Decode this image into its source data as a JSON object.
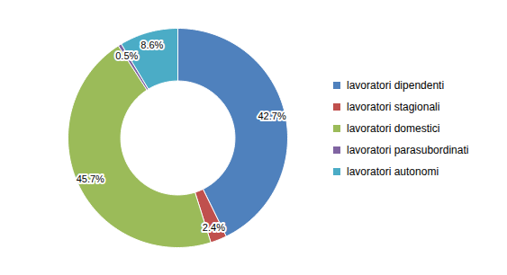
{
  "chart_data": {
    "type": "donut",
    "categories": [
      "lavoratori dipendenti",
      "lavoratori stagionali",
      "lavoratori domestici",
      "lavoratori parasubordinati",
      "lavoratori autonomi"
    ],
    "values": [
      42.7,
      2.4,
      45.7,
      0.5,
      8.6
    ],
    "value_labels": [
      "42.7%",
      "2.4%",
      "45.7%",
      "0.5%",
      "8.6%"
    ],
    "colors": [
      "#4f81bd",
      "#c0504d",
      "#9bbb59",
      "#8064a2",
      "#4bacc6"
    ],
    "data_labels": true,
    "legend": "right"
  }
}
